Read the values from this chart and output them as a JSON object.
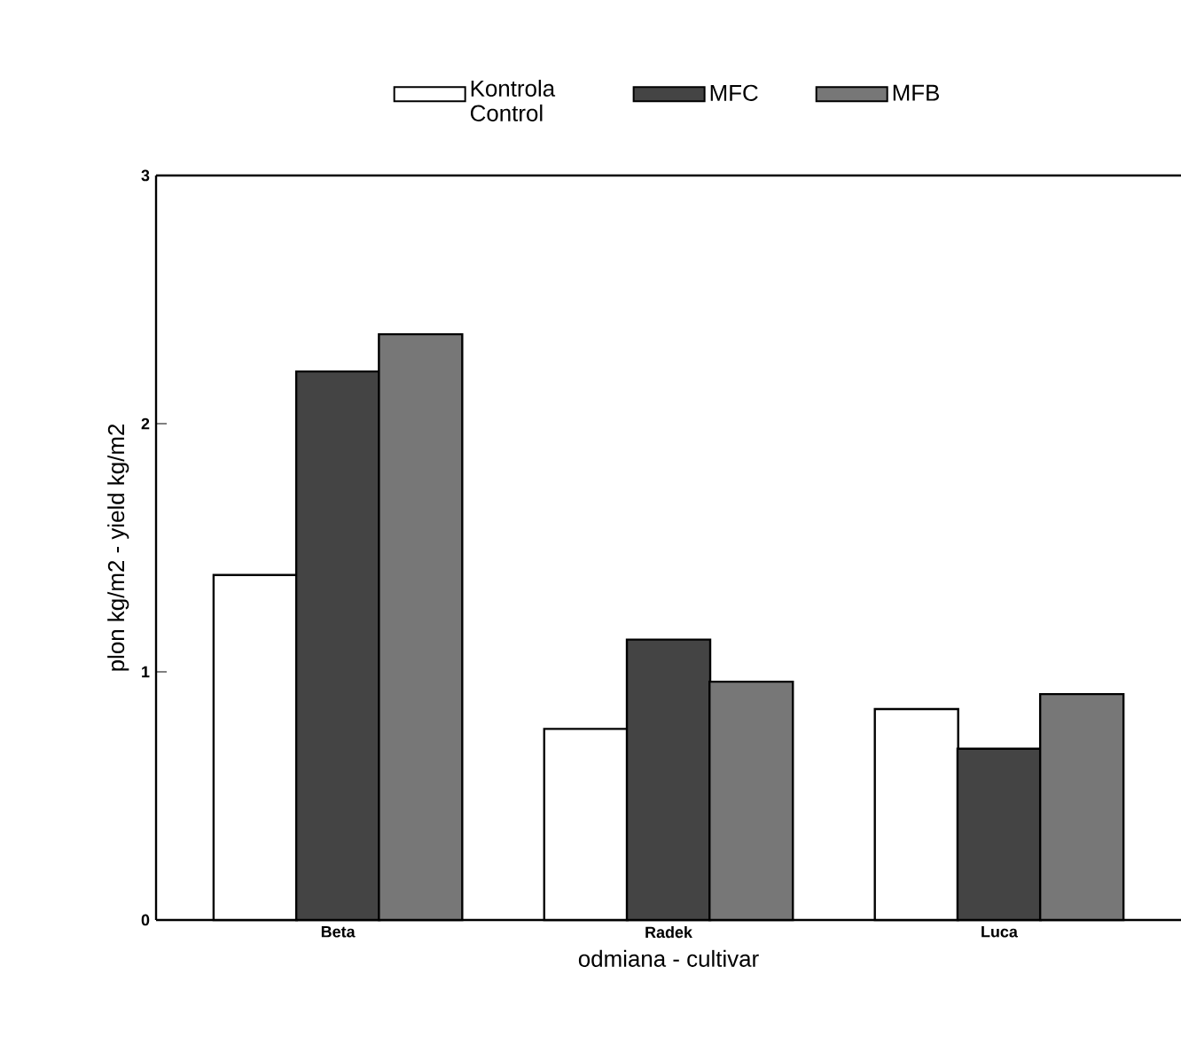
{
  "chart_data": {
    "type": "bar",
    "xlabel": "odmiana - cultivar",
    "ylabel": "plon kg/m2 - yield kg/m2",
    "categories": [
      "Beta",
      "Radek",
      "Luca"
    ],
    "series": [
      {
        "name": "Kontrola Control",
        "color": "#ffffff",
        "values": [
          1.39,
          0.77,
          0.85
        ]
      },
      {
        "name": "MFC",
        "color": "#444444",
        "values": [
          2.21,
          1.13,
          0.69
        ]
      },
      {
        "name": "MFB",
        "color": "#777777",
        "values": [
          2.36,
          0.96,
          0.91
        ]
      }
    ],
    "ylim": [
      0,
      3
    ],
    "yticks": [
      0,
      1,
      2,
      3
    ],
    "grid": false,
    "legend": "top"
  }
}
